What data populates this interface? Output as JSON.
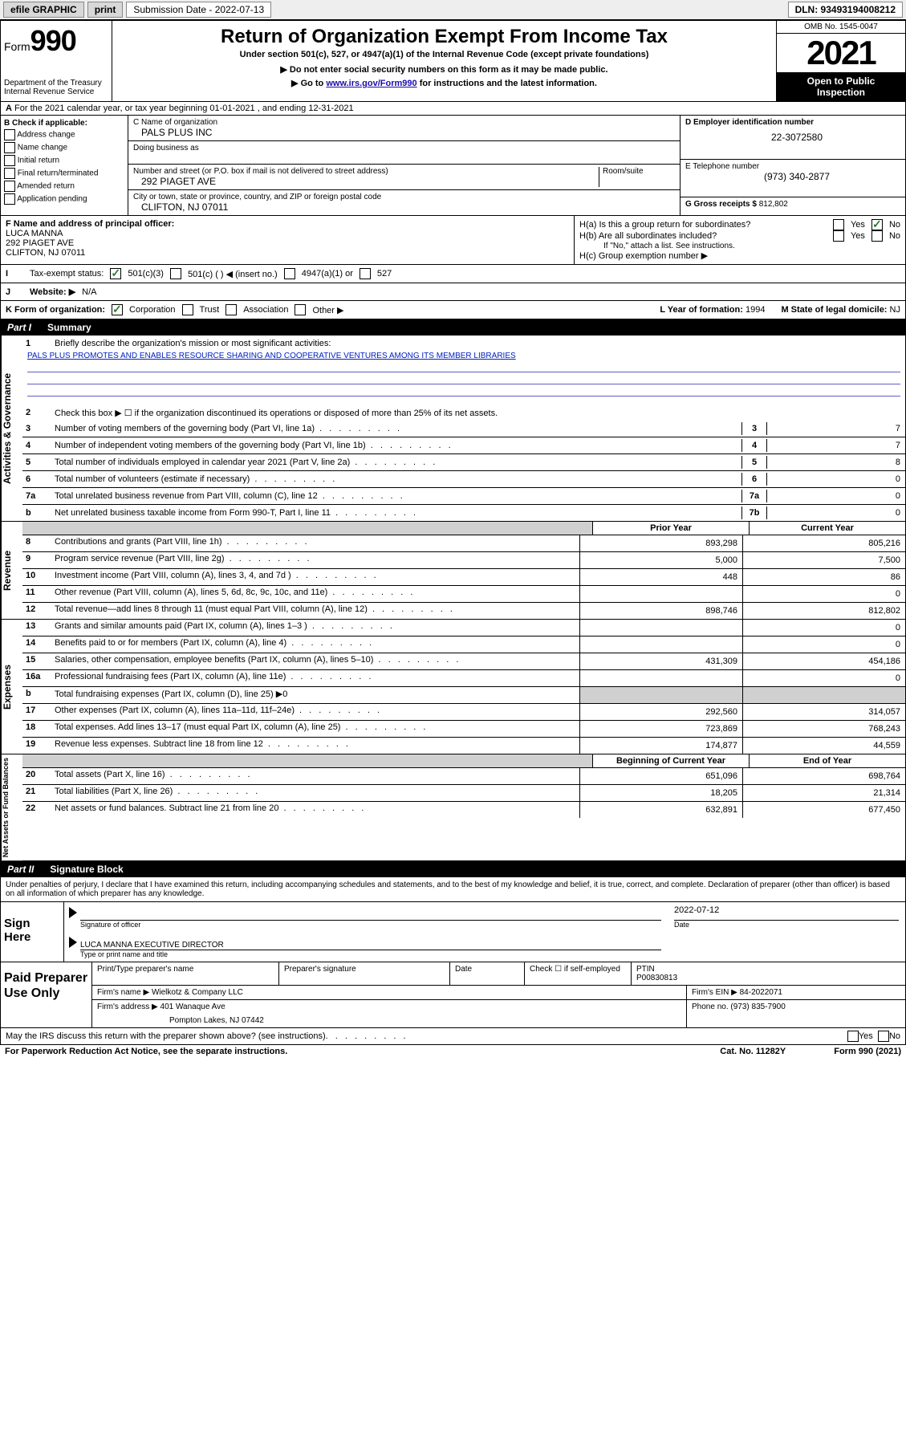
{
  "topbar": {
    "efile": "efile GRAPHIC",
    "print": "print",
    "subdate_label": "Submission Date - 2022-07-13",
    "dln": "DLN: 93493194008212"
  },
  "header": {
    "form_word": "Form",
    "form_num": "990",
    "dept": "Department of the Treasury",
    "irs": "Internal Revenue Service",
    "title": "Return of Organization Exempt From Income Tax",
    "sub1": "Under section 501(c), 527, or 4947(a)(1) of the Internal Revenue Code (except private foundations)",
    "sub2": "▶ Do not enter social security numbers on this form as it may be made public.",
    "sub3a": "▶ Go to ",
    "sub3link": "www.irs.gov/Form990",
    "sub3b": " for instructions and the latest information.",
    "omb": "OMB No. 1545-0047",
    "year": "2021",
    "open1": "Open to Public",
    "open2": "Inspection"
  },
  "rowA": "For the 2021 calendar year, or tax year beginning 01-01-2021   , and ending 12-31-2021",
  "colB": {
    "label": "B Check if applicable:",
    "opts": [
      "Address change",
      "Name change",
      "Initial return",
      "Final return/terminated",
      "Amended return",
      "Application pending"
    ]
  },
  "colC": {
    "name_lbl": "C Name of organization",
    "name": "PALS PLUS INC",
    "dba_lbl": "Doing business as",
    "addr_lbl": "Number and street (or P.O. box if mail is not delivered to street address)",
    "room_lbl": "Room/suite",
    "addr": "292 PIAGET AVE",
    "city_lbl": "City or town, state or province, country, and ZIP or foreign postal code",
    "city": "CLIFTON, NJ  07011"
  },
  "colD": {
    "ein_lbl": "D Employer identification number",
    "ein": "22-3072580",
    "tel_lbl": "E Telephone number",
    "tel": "(973) 340-2877",
    "gross_lbl": "G Gross receipts $",
    "gross": "812,802"
  },
  "rowF": {
    "lbl": "F Name and address of principal officer:",
    "name": "LUCA MANNA",
    "addr1": "292 PIAGET AVE",
    "addr2": "CLIFTON, NJ  07011",
    "ha": "H(a)  Is this a group return for subordinates?",
    "hb": "H(b)  Are all subordinates included?",
    "hnote": "If \"No,\" attach a list. See instructions.",
    "hc": "H(c)  Group exemption number ▶",
    "yes": "Yes",
    "no": "No"
  },
  "rowI": {
    "lbl": "Tax-exempt status:",
    "o1": "501(c)(3)",
    "o2": "501(c) (   ) ◀ (insert no.)",
    "o3": "4947(a)(1) or",
    "o4": "527"
  },
  "rowJ": {
    "lbl": "Website: ▶",
    "val": "N/A"
  },
  "rowK": {
    "lbl": "K Form of organization:",
    "o1": "Corporation",
    "o2": "Trust",
    "o3": "Association",
    "o4": "Other ▶",
    "yr_lbl": "L Year of formation:",
    "yr": "1994",
    "dom_lbl": "M State of legal domicile:",
    "dom": "NJ"
  },
  "part1": {
    "label": "Part I",
    "title": "Summary"
  },
  "summary": {
    "q1": "Briefly describe the organization's mission or most significant activities:",
    "mission": "PALS PLUS PROMOTES AND ENABLES RESOURCE SHARING AND COOPERATIVE VENTURES AMONG ITS MEMBER LIBRARIES",
    "q2": "Check this box ▶ ☐  if the organization discontinued its operations or disposed of more than 25% of its net assets.",
    "lines_top": [
      {
        "n": "3",
        "d": "Number of voting members of the governing body (Part VI, line 1a)",
        "ref": "3",
        "v": "7"
      },
      {
        "n": "4",
        "d": "Number of independent voting members of the governing body (Part VI, line 1b)",
        "ref": "4",
        "v": "7"
      },
      {
        "n": "5",
        "d": "Total number of individuals employed in calendar year 2021 (Part V, line 2a)",
        "ref": "5",
        "v": "8"
      },
      {
        "n": "6",
        "d": "Total number of volunteers (estimate if necessary)",
        "ref": "6",
        "v": "0"
      },
      {
        "n": "7a",
        "d": "Total unrelated business revenue from Part VIII, column (C), line 12",
        "ref": "7a",
        "v": "0"
      },
      {
        "n": "b",
        "d": "Net unrelated business taxable income from Form 990-T, Part I, line 11",
        "ref": "7b",
        "v": "0"
      }
    ],
    "h_prior": "Prior Year",
    "h_curr": "Current Year",
    "h_beg": "Beginning of Current Year",
    "h_end": "End of Year",
    "revenue": [
      {
        "n": "8",
        "d": "Contributions and grants (Part VIII, line 1h)",
        "p": "893,298",
        "c": "805,216"
      },
      {
        "n": "9",
        "d": "Program service revenue (Part VIII, line 2g)",
        "p": "5,000",
        "c": "7,500"
      },
      {
        "n": "10",
        "d": "Investment income (Part VIII, column (A), lines 3, 4, and 7d )",
        "p": "448",
        "c": "86"
      },
      {
        "n": "11",
        "d": "Other revenue (Part VIII, column (A), lines 5, 6d, 8c, 9c, 10c, and 11e)",
        "p": "",
        "c": "0"
      },
      {
        "n": "12",
        "d": "Total revenue—add lines 8 through 11 (must equal Part VIII, column (A), line 12)",
        "p": "898,746",
        "c": "812,802"
      }
    ],
    "expenses": [
      {
        "n": "13",
        "d": "Grants and similar amounts paid (Part IX, column (A), lines 1–3 )",
        "p": "",
        "c": "0"
      },
      {
        "n": "14",
        "d": "Benefits paid to or for members (Part IX, column (A), line 4)",
        "p": "",
        "c": "0"
      },
      {
        "n": "15",
        "d": "Salaries, other compensation, employee benefits (Part IX, column (A), lines 5–10)",
        "p": "431,309",
        "c": "454,186"
      },
      {
        "n": "16a",
        "d": "Professional fundraising fees (Part IX, column (A), line 11e)",
        "p": "",
        "c": "0"
      },
      {
        "n": "b",
        "d": "Total fundraising expenses (Part IX, column (D), line 25) ▶0",
        "p": "SHADE",
        "c": "SHADE"
      },
      {
        "n": "17",
        "d": "Other expenses (Part IX, column (A), lines 11a–11d, 11f–24e)",
        "p": "292,560",
        "c": "314,057"
      },
      {
        "n": "18",
        "d": "Total expenses. Add lines 13–17 (must equal Part IX, column (A), line 25)",
        "p": "723,869",
        "c": "768,243"
      },
      {
        "n": "19",
        "d": "Revenue less expenses. Subtract line 18 from line 12",
        "p": "174,877",
        "c": "44,559"
      }
    ],
    "netassets": [
      {
        "n": "20",
        "d": "Total assets (Part X, line 16)",
        "p": "651,096",
        "c": "698,764"
      },
      {
        "n": "21",
        "d": "Total liabilities (Part X, line 26)",
        "p": "18,205",
        "c": "21,314"
      },
      {
        "n": "22",
        "d": "Net assets or fund balances. Subtract line 21 from line 20",
        "p": "632,891",
        "c": "677,450"
      }
    ]
  },
  "vtabs": {
    "gov": "Activities & Governance",
    "rev": "Revenue",
    "exp": "Expenses",
    "net": "Net Assets or Fund Balances"
  },
  "part2": {
    "label": "Part II",
    "title": "Signature Block"
  },
  "sig": {
    "disclaimer": "Under penalties of perjury, I declare that I have examined this return, including accompanying schedules and statements, and to the best of my knowledge and belief, it is true, correct, and complete. Declaration of preparer (other than officer) is based on all information of which preparer has any knowledge.",
    "sign_here": "Sign Here",
    "sig_lbl": "Signature of officer",
    "date_lbl": "Date",
    "date": "2022-07-12",
    "name": "LUCA MANNA  EXECUTIVE DIRECTOR",
    "name_lbl": "Type or print name and title"
  },
  "paid": {
    "title": "Paid Preparer Use Only",
    "pt_name_lbl": "Print/Type preparer's name",
    "sig_lbl": "Preparer's signature",
    "date_lbl": "Date",
    "check_lbl": "Check ☐ if self-employed",
    "ptin_lbl": "PTIN",
    "ptin": "P00830813",
    "firm_name_lbl": "Firm's name   ▶",
    "firm_name": "Wielkotz & Company LLC",
    "firm_ein_lbl": "Firm's EIN ▶",
    "firm_ein": "84-2022071",
    "firm_addr_lbl": "Firm's address ▶",
    "firm_addr1": "401 Wanaque Ave",
    "firm_addr2": "Pompton Lakes, NJ  07442",
    "phone_lbl": "Phone no.",
    "phone": "(973) 835-7900"
  },
  "footer": {
    "discuss": "May the IRS discuss this return with the preparer shown above? (see instructions)",
    "yes": "Yes",
    "no": "No",
    "paperwork": "For Paperwork Reduction Act Notice, see the separate instructions.",
    "cat": "Cat. No. 11282Y",
    "form": "Form 990 (2021)"
  }
}
